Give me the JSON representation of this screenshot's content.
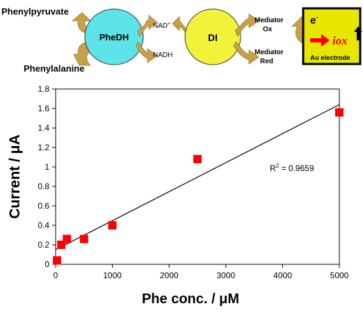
{
  "scheme": {
    "substrate_top": "Phenylpyruvate",
    "substrate_bottom": "Phenylalanine",
    "enzyme1": "PheDH",
    "cofactor_ox": "NAD",
    "cofactor_ox_sup": "+",
    "cofactor_red": "NADH",
    "enzyme2": "DI",
    "mediator_ox_line1": "Mediator",
    "mediator_ox_line2": "Ox",
    "mediator_red_line1": "Mediator",
    "mediator_red_line2": "Red",
    "electron": "e",
    "electron_sup": "-",
    "current_symbol": "iox",
    "electrode": "Au electrode",
    "colors": {
      "enzyme1": "#5ce4e8",
      "enzyme2": "#f2f23a",
      "electrode": "#e6e600",
      "arrow": "#c9a04a",
      "current_arrow": "#ff0000"
    }
  },
  "chart_data": {
    "type": "scatter",
    "xlabel": "Phe conc. / μM",
    "ylabel": "Current  / μA",
    "xlim": [
      0,
      5000
    ],
    "ylim": [
      0,
      1.8
    ],
    "x_ticks": [
      "0",
      "1000",
      "2000",
      "3000",
      "4000",
      "5000"
    ],
    "y_ticks": [
      "0",
      "0.2",
      "0.4",
      "0.6",
      "0.8",
      "1",
      "1.2",
      "1.4",
      "1.6",
      "1.8"
    ],
    "series": [
      {
        "marker": "square",
        "color": "#ff0000",
        "x": [
          25,
          100,
          200,
          500,
          1000,
          2500,
          5000
        ],
        "y": [
          0.04,
          0.2,
          0.26,
          0.26,
          0.4,
          1.08,
          1.56
        ]
      }
    ],
    "trendline": {
      "x": [
        0,
        5000
      ],
      "y": [
        0.15,
        1.64
      ]
    },
    "annotation": {
      "text": "R",
      "sup": "2",
      "rest": " = 0.9659"
    },
    "grid": false,
    "legend": "none"
  }
}
